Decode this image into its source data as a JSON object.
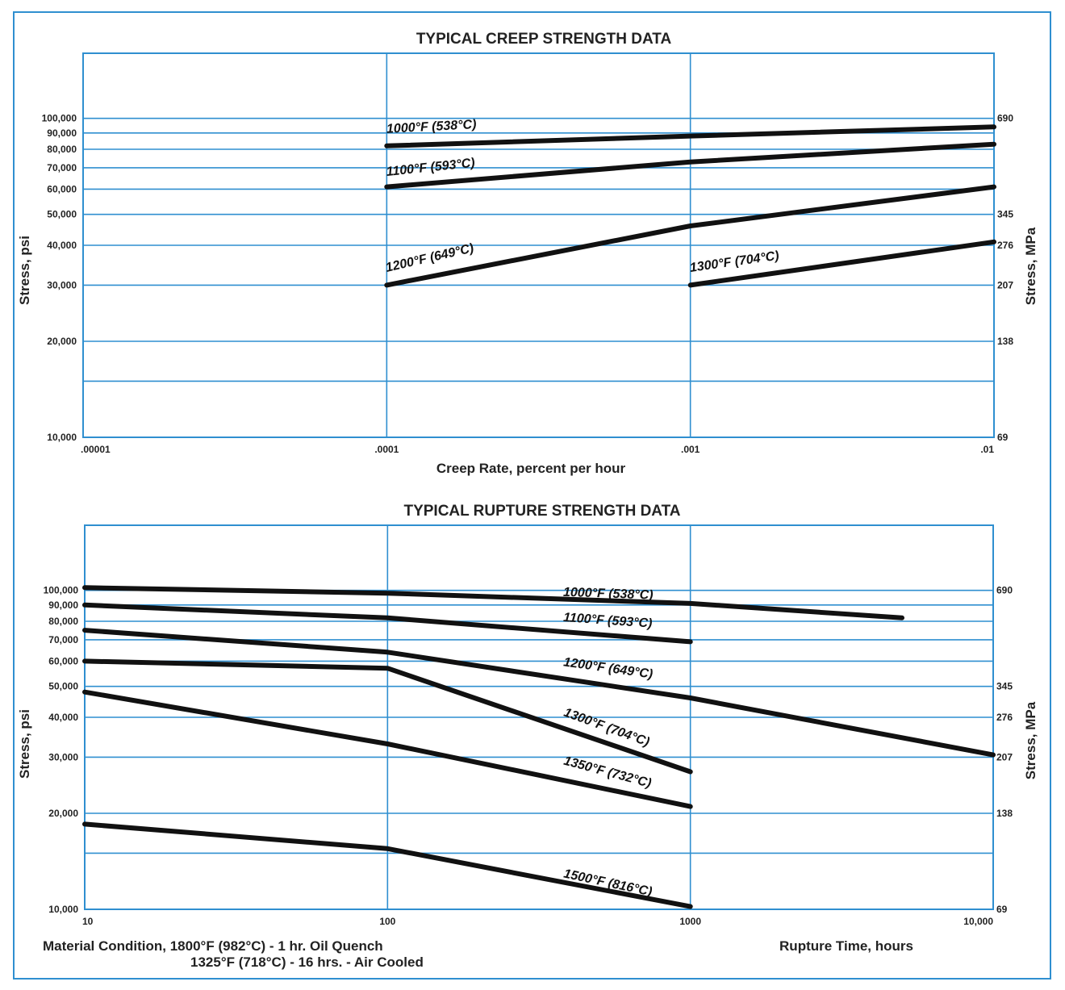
{
  "colors": {
    "grid": "#2f8fd0",
    "curve": "#111111",
    "text": "#222222"
  },
  "chart_data": [
    {
      "type": "line",
      "title": "TYPICAL CREEP STRENGTH DATA",
      "xlabel": "Creep Rate, percent per hour",
      "ylabel": "Stress, psi",
      "y2label": "Stress, MPa",
      "x_scale": "log",
      "y_scale": "log",
      "xlim": [
        1e-05,
        0.01
      ],
      "ylim": [
        10000,
        160000
      ],
      "x_ticks": [
        {
          "value": 1e-05,
          "label": ".00001"
        },
        {
          "value": 0.0001,
          "label": ".0001"
        },
        {
          "value": 0.001,
          "label": ".001"
        },
        {
          "value": 0.01,
          "label": ".01"
        }
      ],
      "y_ticks": [
        {
          "value": 10000,
          "label": "10,000"
        },
        {
          "value": 20000,
          "label": "20,000"
        },
        {
          "value": 30000,
          "label": "30,000"
        },
        {
          "value": 40000,
          "label": "40,000"
        },
        {
          "value": 50000,
          "label": "50,000"
        },
        {
          "value": 60000,
          "label": "60,000"
        },
        {
          "value": 70000,
          "label": "70,000"
        },
        {
          "value": 80000,
          "label": "80,000"
        },
        {
          "value": 90000,
          "label": "90,000"
        },
        {
          "value": 100000,
          "label": "100,000"
        }
      ],
      "y_grid": [
        15000,
        20000,
        30000,
        40000,
        50000,
        60000,
        70000,
        80000,
        90000,
        100000
      ],
      "y2_ticks": [
        {
          "value": 10000,
          "label": "69"
        },
        {
          "value": 20000,
          "label": "138"
        },
        {
          "value": 30000,
          "label": "207"
        },
        {
          "value": 40000,
          "label": "276"
        },
        {
          "value": 50000,
          "label": "345"
        },
        {
          "value": 100000,
          "label": "690"
        }
      ],
      "series": [
        {
          "name": "1000°F (538°C)",
          "x": [
            0.0001,
            0.001,
            0.01
          ],
          "y": [
            82000,
            88000,
            94000
          ],
          "label_at": [
            0.0001,
            90000
          ],
          "label_angle": -3
        },
        {
          "name": "1100°F (593°C)",
          "x": [
            0.0001,
            0.001,
            0.01
          ],
          "y": [
            61000,
            73000,
            83000
          ],
          "label_at": [
            0.0001,
            66000
          ],
          "label_angle": -6
        },
        {
          "name": "1200°F (649°C)",
          "x": [
            0.0001,
            0.001,
            0.01
          ],
          "y": [
            30000,
            46000,
            61000
          ],
          "label_at": [
            0.0001,
            33000
          ],
          "label_angle": -13
        },
        {
          "name": "1300°F (704°C)",
          "x": [
            0.001,
            0.01
          ],
          "y": [
            30000,
            41000
          ],
          "label_at": [
            0.001,
            33000
          ],
          "label_angle": -8
        }
      ]
    },
    {
      "type": "line",
      "title": "TYPICAL RUPTURE STRENGTH DATA",
      "xlabel": "Rupture Time, hours",
      "ylabel": "Stress, psi",
      "y2label": "Stress, MPa",
      "x_scale": "log",
      "y_scale": "log",
      "xlim": [
        10,
        10000
      ],
      "ylim": [
        10000,
        160000
      ],
      "x_ticks": [
        {
          "value": 10,
          "label": "10"
        },
        {
          "value": 100,
          "label": "100"
        },
        {
          "value": 1000,
          "label": "1000"
        },
        {
          "value": 10000,
          "label": "10,000"
        }
      ],
      "y_ticks": [
        {
          "value": 10000,
          "label": "10,000"
        },
        {
          "value": 20000,
          "label": "20,000"
        },
        {
          "value": 30000,
          "label": "30,000"
        },
        {
          "value": 40000,
          "label": "40,000"
        },
        {
          "value": 50000,
          "label": "50,000"
        },
        {
          "value": 60000,
          "label": "60,000"
        },
        {
          "value": 70000,
          "label": "70,000"
        },
        {
          "value": 80000,
          "label": "80,000"
        },
        {
          "value": 90000,
          "label": "90,000"
        },
        {
          "value": 100000,
          "label": "100,000"
        }
      ],
      "y_grid": [
        15000,
        20000,
        30000,
        40000,
        50000,
        60000,
        70000,
        80000,
        90000,
        100000
      ],
      "y2_ticks": [
        {
          "value": 10000,
          "label": "69"
        },
        {
          "value": 20000,
          "label": "138"
        },
        {
          "value": 30000,
          "label": "207"
        },
        {
          "value": 40000,
          "label": "276"
        },
        {
          "value": 50000,
          "label": "345"
        },
        {
          "value": 100000,
          "label": "690"
        }
      ],
      "series": [
        {
          "name": "1000°F (538°C)",
          "x": [
            10,
            100,
            1000,
            5000
          ],
          "y": [
            102000,
            98000,
            91000,
            82000
          ],
          "label_at": [
            380,
            96000
          ],
          "label_angle": 2
        },
        {
          "name": "1100°F (593°C)",
          "x": [
            10,
            100,
            1000
          ],
          "y": [
            90000,
            82000,
            69000
          ],
          "label_at": [
            380,
            80000
          ],
          "label_angle": 4
        },
        {
          "name": "1200°F (649°C)",
          "x": [
            10,
            100,
            1000,
            10000
          ],
          "y": [
            75000,
            64000,
            46000,
            30500
          ],
          "label_at": [
            380,
            58000
          ],
          "label_angle": 8
        },
        {
          "name": "1300°F (704°C)",
          "x": [
            10,
            100,
            1000
          ],
          "y": [
            60000,
            57000,
            27000
          ],
          "label_at": [
            380,
            40500
          ],
          "label_angle": 20
        },
        {
          "name": "1350°F (732°C)",
          "x": [
            10,
            100,
            1000
          ],
          "y": [
            48000,
            33000,
            21000
          ],
          "label_at": [
            380,
            28500
          ],
          "label_angle": 15
        },
        {
          "name": "1500°F (816°C)",
          "x": [
            10,
            100,
            1000
          ],
          "y": [
            18500,
            15500,
            10200
          ],
          "label_at": [
            380,
            12600
          ],
          "label_angle": 12
        }
      ]
    }
  ],
  "notes": {
    "condition_line1": "Material Condition, 1800°F (982°C) - 1 hr. Oil Quench",
    "condition_line2": "1325°F (718°C) - 16 hrs. - Air Cooled"
  }
}
